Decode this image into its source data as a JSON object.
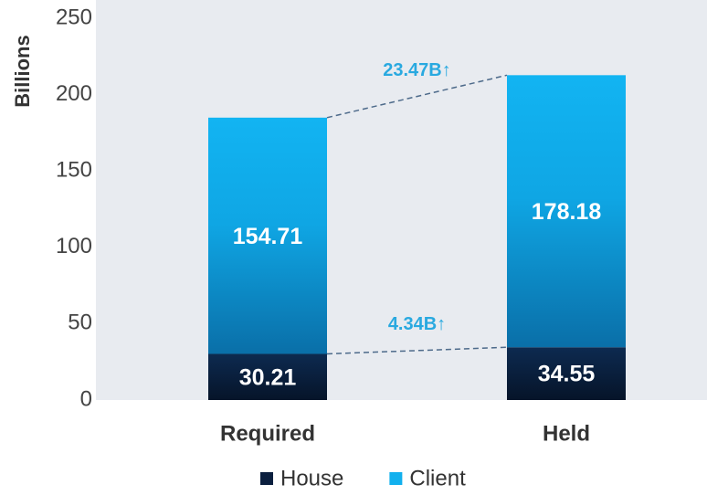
{
  "chart_data": {
    "type": "stacked_bar",
    "y_label": "Billions",
    "categories": [
      "Required",
      "Held"
    ],
    "series": [
      {
        "name": "House",
        "color": "#0b1f3f",
        "values": [
          30.21,
          34.55
        ]
      },
      {
        "name": "Client",
        "color": "#12b0ee",
        "values": [
          154.71,
          178.18
        ]
      }
    ],
    "annotations": [
      "23.47B↑",
      "4.34B↑"
    ],
    "annotation_color": "#29a9e0",
    "ylim": [
      0,
      250
    ],
    "yticks": [
      0,
      50,
      100,
      150,
      200,
      250
    ],
    "legend": "bottom"
  }
}
